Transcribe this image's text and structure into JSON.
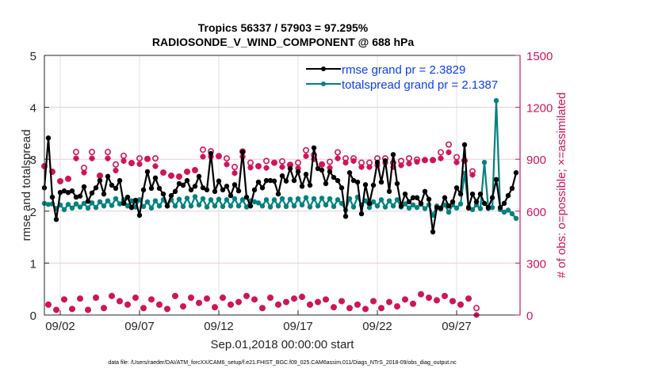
{
  "chart_data": {
    "type": "line",
    "title": [
      "Tropics 56337 / 57903 = 97.295%",
      "RADIOSONDE_V_WIND_COMPONENT @ 688 hPa"
    ],
    "xlabel": "Sep.01,2018 00:00:00 start",
    "ylabel": "rmse and totalspread",
    "y2label": "# of obs: o=possible; ×=assimilated",
    "footer": "data file: /Users/raeder/DAI/ATM_forcXX/CAM6_setup/f.e21.FHIST_BGC.f09_025.CAM6assim.011/Diags_NTrS_2018-09/obs_diag_output.nc",
    "x_units": "days since Sep.01,2018 00:00",
    "x_step_days": 0.25,
    "xlim": [
      0,
      30
    ],
    "x_ticks": [
      1,
      6,
      11,
      16,
      21,
      26
    ],
    "x_tick_labels": [
      "09/02",
      "09/07",
      "09/12",
      "09/17",
      "09/22",
      "09/27"
    ],
    "ylim": [
      0,
      5
    ],
    "y_ticks": [
      0,
      1,
      2,
      3,
      4,
      5
    ],
    "y2lim": [
      0,
      1500
    ],
    "y2_ticks": [
      0,
      300,
      600,
      900,
      1200,
      1500
    ],
    "grid": true,
    "legend_position": "top-right",
    "legend": [
      "rmse grand pr = 2.3829",
      "totalspread grand pr = 2.1387"
    ],
    "colors": {
      "rmse": "#000000",
      "totalspread": "#00827f",
      "obs": "#d0145a",
      "legend_text": "#0b3ff0",
      "grid": "#f0c8d8"
    },
    "series": [
      {
        "name": "rmse",
        "values": [
          2.45,
          3.41,
          2.27,
          1.84,
          2.36,
          2.39,
          2.36,
          2.39,
          2.27,
          2.29,
          2.47,
          2.19,
          2.35,
          2.45,
          2.59,
          2.33,
          2.67,
          2.5,
          2.44,
          2.59,
          2.15,
          2.27,
          2.07,
          2.21,
          1.92,
          2.41,
          2.76,
          2.44,
          2.64,
          2.44,
          2.33,
          2.1,
          2.3,
          2.38,
          2.53,
          2.5,
          2.59,
          2.41,
          2.48,
          2.67,
          2.45,
          2.41,
          3.11,
          2.38,
          2.58,
          2.41,
          2.48,
          2.3,
          2.51,
          2.39,
          3.14,
          2.27,
          2.1,
          2.41,
          2.56,
          2.45,
          2.59,
          2.59,
          2.58,
          2.33,
          2.68,
          2.58,
          2.82,
          2.59,
          2.76,
          2.48,
          2.71,
          2.5,
          3.22,
          2.82,
          2.79,
          2.53,
          2.76,
          2.65,
          2.59,
          2.45,
          1.9,
          2.74,
          2.59,
          2.56,
          1.95,
          2.51,
          2.15,
          2.5,
          2.94,
          2.56,
          2.97,
          2.38,
          3.09,
          2.53,
          2.1,
          2.33,
          2.18,
          2.26,
          2.26,
          2.15,
          2.38,
          2.23,
          1.6,
          2.07,
          2.06,
          2.26,
          2.1,
          2.18,
          2.45,
          2.33,
          3.28,
          2.06,
          2.33,
          2.18,
          2.33,
          2.15,
          2.07,
          2.26,
          2.61,
          2.07,
          2.15,
          2.3,
          2.44,
          2.74
        ]
      },
      {
        "name": "totalspread",
        "values": [
          2.15,
          2.13,
          2.14,
          2.05,
          2.12,
          2.03,
          2.13,
          2.06,
          2.14,
          2.08,
          2.15,
          2.06,
          2.16,
          2.07,
          2.18,
          2.1,
          2.2,
          2.11,
          2.24,
          2.14,
          2.22,
          2.1,
          2.2,
          2.08,
          2.22,
          2.09,
          2.18,
          2.06,
          2.2,
          2.1,
          2.22,
          2.1,
          2.22,
          2.1,
          2.23,
          2.09,
          2.25,
          2.1,
          2.28,
          2.12,
          2.24,
          2.08,
          2.22,
          2.1,
          2.23,
          2.09,
          2.22,
          2.1,
          2.24,
          2.1,
          2.22,
          2.08,
          2.2,
          2.18,
          2.16,
          2.1,
          2.22,
          2.08,
          2.22,
          2.1,
          2.24,
          2.09,
          2.23,
          2.1,
          2.24,
          2.12,
          2.26,
          2.08,
          2.24,
          2.1,
          2.25,
          2.12,
          2.24,
          2.09,
          2.22,
          2.15,
          2.02,
          2.24,
          2.08,
          2.27,
          2.12,
          2.2,
          2.07,
          2.18,
          2.1,
          2.22,
          2.08,
          2.2,
          2.1,
          2.22,
          2.08,
          2.14,
          2.06,
          2.12,
          2.07,
          2.13,
          2.05,
          2.12,
          1.92,
          2.1,
          2.04,
          2.12,
          1.98,
          2.12,
          2.06,
          2.14,
          2.73,
          2.08,
          2.03,
          2.12,
          2.05,
          2.94,
          2.05,
          2.07,
          4.13,
          2.03,
          1.98,
          2.02,
          1.95,
          1.86
        ]
      }
    ],
    "obs_possible": [
      860,
      60,
      828,
      30,
      773,
      90,
      787,
      35,
      942,
      95,
      850,
      30,
      942,
      100,
      805,
      40,
      942,
      110,
      870,
      80,
      920,
      60,
      878,
      100,
      905,
      40,
      902,
      90,
      905,
      60,
      823,
      35,
      805,
      110,
      800,
      50,
      828,
      100,
      837,
      70,
      955,
      95,
      946,
      45,
      918,
      100,
      905,
      60,
      855,
      75,
      945,
      110,
      880,
      90,
      860,
      40,
      890,
      100,
      880,
      60,
      888,
      75,
      868,
      95,
      880,
      105,
      952,
      60,
      925,
      75,
      870,
      90,
      885,
      45,
      940,
      80,
      905,
      40,
      905,
      60,
      880,
      35,
      880,
      80,
      905,
      40,
      905,
      75,
      880,
      50,
      890,
      90,
      905,
      65,
      898,
      120,
      895,
      100,
      895,
      85,
      940,
      110,
      985,
      80,
      912,
      60,
      892,
      95,
      830,
      40
    ],
    "obs_assimilated": [
      860,
      60,
      828,
      30,
      773,
      90,
      787,
      35,
      905,
      95,
      823,
      30,
      905,
      100,
      805,
      40,
      905,
      110,
      835,
      80,
      890,
      60,
      878,
      100,
      872,
      40,
      902,
      90,
      860,
      60,
      823,
      35,
      805,
      110,
      800,
      50,
      828,
      100,
      837,
      70,
      915,
      95,
      915,
      45,
      918,
      100,
      870,
      60,
      820,
      75,
      915,
      110,
      852,
      90,
      860,
      40,
      850,
      100,
      880,
      60,
      855,
      75,
      868,
      95,
      848,
      105,
      918,
      60,
      900,
      75,
      870,
      90,
      850,
      45,
      905,
      80,
      880,
      40,
      890,
      60,
      855,
      35,
      855,
      80,
      865,
      40,
      880,
      75,
      855,
      50,
      865,
      90,
      875,
      65,
      885,
      120,
      895,
      100,
      895,
      85,
      905,
      110,
      940,
      80,
      882,
      60,
      892,
      95,
      810,
      0
    ]
  }
}
